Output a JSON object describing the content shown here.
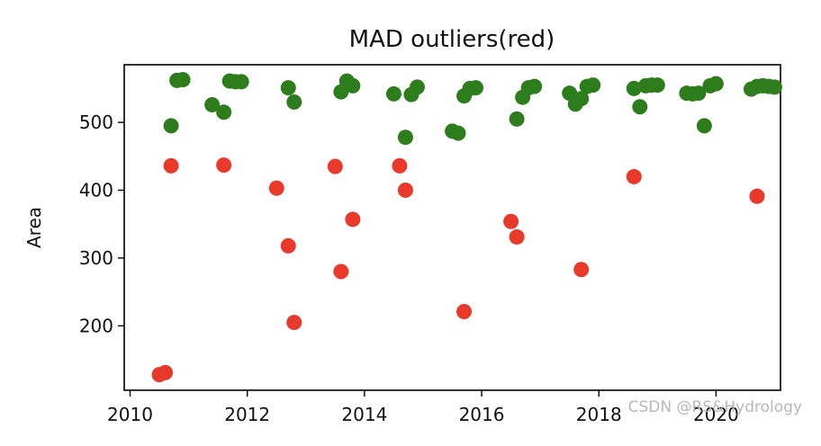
{
  "chart_data": {
    "type": "scatter",
    "title": "MAD outliers(red)",
    "xlabel": "",
    "ylabel": "Area",
    "xlim": [
      2009.9,
      2021.1
    ],
    "ylim": [
      105,
      585
    ],
    "x_ticks": [
      2010,
      2012,
      2014,
      2016,
      2018,
      2020
    ],
    "y_ticks": [
      200,
      300,
      400,
      500
    ],
    "grid": false,
    "legend": "none",
    "series": [
      {
        "color": "#2e7d1c",
        "points": [
          [
            2010.7,
            495
          ],
          [
            2010.8,
            562
          ],
          [
            2010.9,
            563
          ],
          [
            2011.4,
            526
          ],
          [
            2011.6,
            515
          ],
          [
            2011.7,
            561
          ],
          [
            2011.8,
            560
          ],
          [
            2011.9,
            560
          ],
          [
            2012.7,
            551
          ],
          [
            2012.8,
            530
          ],
          [
            2013.6,
            545
          ],
          [
            2013.7,
            561
          ],
          [
            2013.8,
            554
          ],
          [
            2014.5,
            542
          ],
          [
            2014.7,
            478
          ],
          [
            2014.8,
            541
          ],
          [
            2014.9,
            552
          ],
          [
            2015.5,
            487
          ],
          [
            2015.6,
            484
          ],
          [
            2015.7,
            539
          ],
          [
            2015.8,
            550
          ],
          [
            2015.9,
            551
          ],
          [
            2016.6,
            505
          ],
          [
            2016.7,
            537
          ],
          [
            2016.8,
            551
          ],
          [
            2016.9,
            553
          ],
          [
            2017.5,
            543
          ],
          [
            2017.6,
            527
          ],
          [
            2017.7,
            535
          ],
          [
            2017.8,
            553
          ],
          [
            2017.9,
            555
          ],
          [
            2018.6,
            550
          ],
          [
            2018.7,
            523
          ],
          [
            2018.8,
            554
          ],
          [
            2018.9,
            555
          ],
          [
            2019.0,
            555
          ],
          [
            2019.5,
            543
          ],
          [
            2019.6,
            542
          ],
          [
            2019.7,
            543
          ],
          [
            2019.8,
            495
          ],
          [
            2019.9,
            554
          ],
          [
            2020.0,
            557
          ],
          [
            2020.6,
            549
          ],
          [
            2020.7,
            553
          ],
          [
            2020.8,
            554
          ],
          [
            2020.9,
            553
          ],
          [
            2021.0,
            552
          ]
        ]
      },
      {
        "color": "#e8392a",
        "points": [
          [
            2010.5,
            128
          ],
          [
            2010.6,
            131
          ],
          [
            2010.7,
            436
          ],
          [
            2011.6,
            437
          ],
          [
            2012.5,
            403
          ],
          [
            2012.7,
            318
          ],
          [
            2012.8,
            205
          ],
          [
            2013.5,
            435
          ],
          [
            2013.6,
            280
          ],
          [
            2013.8,
            357
          ],
          [
            2014.6,
            436
          ],
          [
            2014.7,
            400
          ],
          [
            2015.7,
            221
          ],
          [
            2016.5,
            354
          ],
          [
            2016.6,
            331
          ],
          [
            2017.7,
            283
          ],
          [
            2018.6,
            420
          ],
          [
            2020.7,
            391
          ]
        ]
      }
    ]
  },
  "watermark": "CSDN @RS&Hydrology"
}
